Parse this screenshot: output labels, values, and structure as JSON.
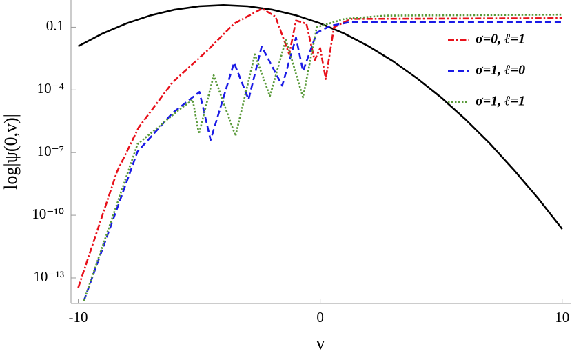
{
  "chart_data": {
    "type": "line",
    "xlabel": "v",
    "ylabel": "log|ψ(0,v)|",
    "log_y": true,
    "legend": "upper right",
    "xlim": [
      -10.3,
      10.35
    ],
    "xticks": [
      -10,
      0,
      10
    ],
    "ylim": [
      6e-15,
      2
    ],
    "yticks": [
      {
        "value": 0.1,
        "label": "0.1"
      },
      {
        "value": 0.0001,
        "label": "10⁻⁴"
      },
      {
        "value": 1e-07,
        "label": "10⁻⁷"
      },
      {
        "value": 1e-10,
        "label": "10⁻¹⁰"
      },
      {
        "value": 1e-13,
        "label": "10⁻¹³"
      }
    ],
    "series": [
      {
        "color": "#000000",
        "style": "solid",
        "x": [
          -10,
          -9,
          -8,
          -7,
          -6,
          -5,
          -4,
          -3,
          -2,
          -1,
          0,
          1,
          2,
          3,
          4,
          5,
          6,
          7,
          8,
          9,
          10
        ],
        "values": [
          0.0123,
          0.0493,
          0.153,
          0.37,
          0.694,
          1.01,
          1.15,
          1.01,
          0.694,
          0.37,
          0.153,
          0.0493,
          0.0123,
          0.0024,
          0.00036,
          4.3e-05,
          3.9e-06,
          2.8e-07,
          1.5e-08,
          6.6e-10,
          2.2e-11
        ]
      },
      {
        "name": "σ=0, ℓ=1",
        "color": "#e8101a",
        "style": "dashdot",
        "x": [
          -10,
          -8.4,
          -7.5,
          -6.1,
          -4.7,
          -3.56,
          -2.4,
          -1.85,
          -1.28,
          -1.0,
          -0.57,
          -0.23,
          0,
          0.23,
          0.57,
          1.28,
          10
        ],
        "values": [
          3.4e-14,
          1.2e-08,
          1.6e-06,
          0.00023,
          0.0069,
          0.148,
          0.78,
          0.32,
          0.005,
          0.21,
          0.148,
          0.0026,
          0.01,
          0.00033,
          0.1,
          0.25,
          0.27
        ]
      },
      {
        "name": "σ=1, ℓ=0",
        "color": "#1a1ae6",
        "style": "dashed",
        "x": [
          -9.77,
          -7.55,
          -6.1,
          -4.99,
          -4.53,
          -3.56,
          -2.96,
          -2.42,
          -1.57,
          -1.0,
          -0.71,
          -0.14,
          0.43,
          1.28,
          10
        ],
        "values": [
          7.9e-15,
          1.1e-07,
          7.9e-06,
          7.9e-05,
          4e-07,
          0.002,
          3.5e-05,
          0.012,
          0.00016,
          0.032,
          0.00079,
          0.055,
          0.117,
          0.18,
          0.18
        ]
      },
      {
        "name": "σ=1, ℓ=1",
        "color": "#5a9a3a",
        "style": "dotted",
        "x": [
          -9.77,
          -7.55,
          -5.84,
          -5.27,
          -5.01,
          -4.4,
          -3.5,
          -2.7,
          -2.08,
          -1.42,
          -0.71,
          -0.14,
          1.0,
          2.7,
          10
        ],
        "values": [
          7.9e-15,
          2.5e-07,
          1.1e-05,
          3.4e-05,
          7.9e-07,
          0.0005,
          6.3e-07,
          0.005,
          5e-05,
          0.025,
          4.4e-05,
          0.1,
          0.25,
          0.36,
          0.4
        ]
      }
    ]
  }
}
